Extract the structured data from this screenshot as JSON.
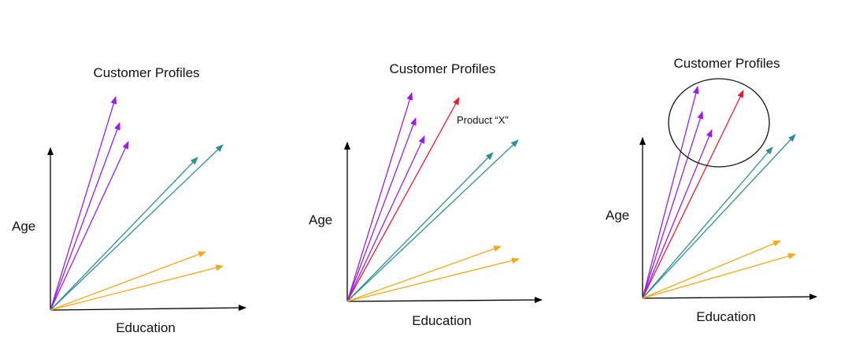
{
  "colors": {
    "axis": "#000000",
    "purple": "#9b1ee6",
    "teal": "#2f8f94",
    "orange": "#f2a91a",
    "red": "#ee1a33",
    "circle": "#111111"
  },
  "panels": [
    {
      "title": "Customer Profiles",
      "x_label": "Education",
      "y_label": "Age",
      "has_product": false,
      "has_circle": false
    },
    {
      "title": "Customer Profiles",
      "x_label": "Education",
      "y_label": "Age",
      "has_product": true,
      "product_label": "Product “X”",
      "has_circle": false
    },
    {
      "title": "Customer Profiles",
      "x_label": "Education",
      "y_label": "Age",
      "has_product": true,
      "product_label": "",
      "has_circle": true
    }
  ]
}
